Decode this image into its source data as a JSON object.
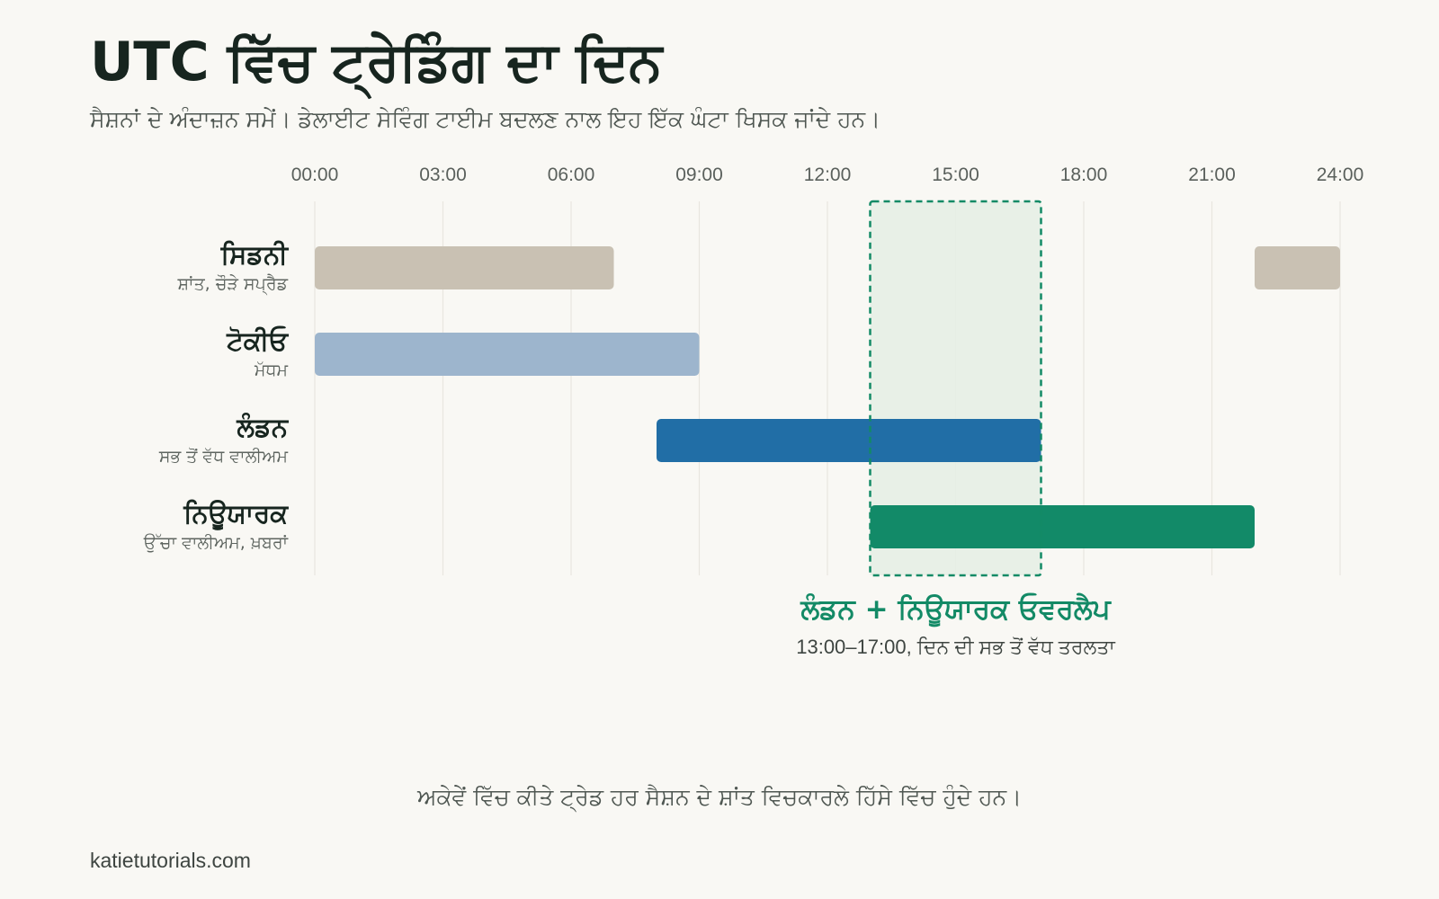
{
  "header": {
    "title": "UTC ਵਿੱਚ ਟ੍ਰੇਡਿੰਗ ਦਾ ਦਿਨ",
    "subtitle": "ਸੈਸ਼ਨਾਂ ਦੇ ਅੰਦਾਜ਼ਨ ਸਮੇਂ। ਡੇਲਾਈਟ ਸੇਵਿੰਗ ਟਾਈਮ ਬਦਲਣ ਨਾਲ ਇਹ ਇੱਕ ਘੰਟਾ ਖਿਸਕ ਜਾਂਦੇ ਹਨ।"
  },
  "footer": {
    "note": "ਅਕੇਵੇਂ ਵਿੱਚ ਕੀਤੇ ਟ੍ਰੇਡ ਹਰ ਸੈਸ਼ਨ ਦੇ ਸ਼ਾਂਤ ਵਿਚਕਾਰਲੇ ਹਿੱਸੇ ਵਿੱਚ ਹੁੰਦੇ ਹਨ।",
    "source": "katietutorials.com"
  },
  "chart_data": {
    "type": "gantt",
    "xlim": [
      0,
      24
    ],
    "ticks": [
      0,
      3,
      6,
      9,
      12,
      15,
      18,
      21,
      24
    ],
    "tick_labels": [
      "00:00",
      "03:00",
      "06:00",
      "09:00",
      "12:00",
      "15:00",
      "18:00",
      "21:00",
      "24:00"
    ],
    "grid": true,
    "sessions": [
      {
        "name": "ਸਿਡਨੀ",
        "description": "ਸ਼ਾਂਤ, ਚੌੜੇ ਸਪ੍ਰੈਡ",
        "color": "#c9c1b3",
        "segments": [
          [
            0,
            7
          ],
          [
            22,
            24
          ]
        ]
      },
      {
        "name": "ਟੋਕੀਓ",
        "description": "ਮੱਧਮ",
        "color": "#9db5cd",
        "segments": [
          [
            0,
            9
          ]
        ]
      },
      {
        "name": "ਲੰਡਨ",
        "description": "ਸਭ ਤੋਂ ਵੱਧ ਵਾਲੀਅਮ",
        "color": "#216ea6",
        "segments": [
          [
            8,
            17
          ]
        ]
      },
      {
        "name": "ਨਿਊਯਾਰਕ",
        "description": "ਉੱਚਾ ਵਾਲੀਅਮ, ਖ਼ਬਰਾਂ",
        "color": "#128a68",
        "segments": [
          [
            13,
            22
          ]
        ]
      }
    ],
    "overlap": {
      "start": 13,
      "end": 17,
      "label": "ਲੰਡਨ + ਨਿਊਯਾਰਕ ਓਵਰਲੈਪ",
      "sublabel": "13:00–17:00, ਦਿਨ ਦੀ ਸਭ ਤੋਂ ਵੱਧ ਤਰਲਤਾ",
      "color": "#138a66"
    }
  }
}
